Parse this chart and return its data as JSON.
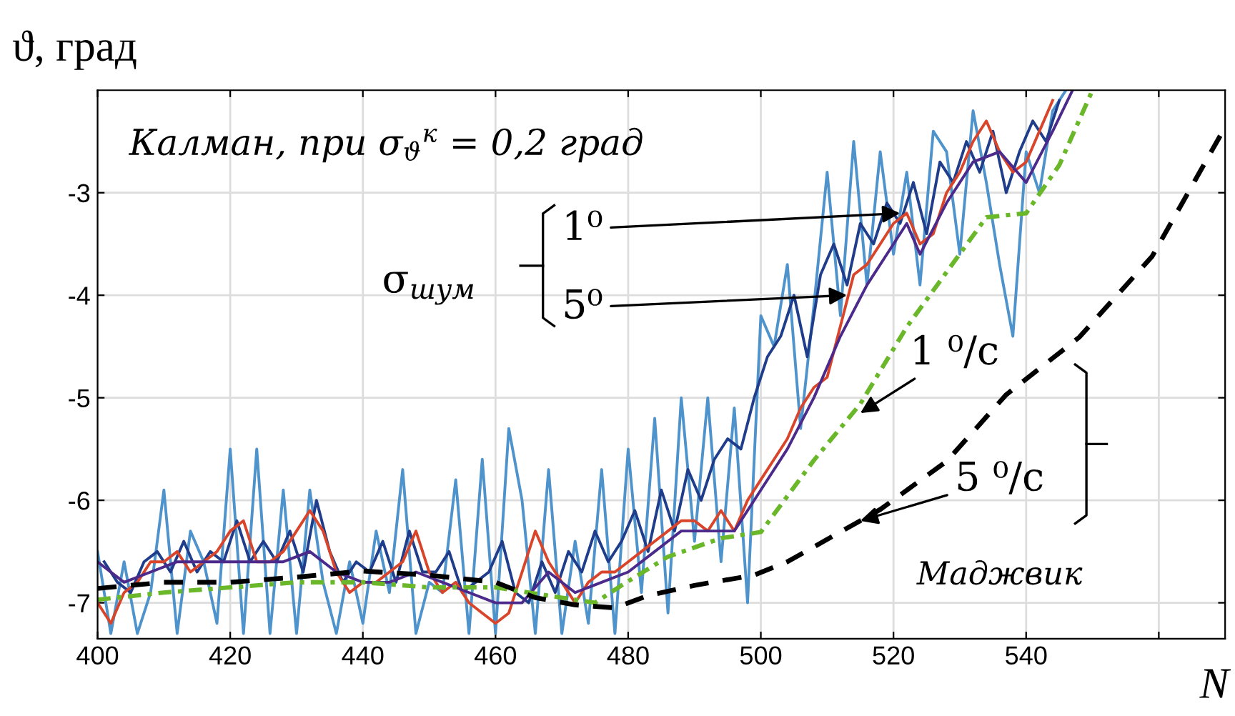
{
  "chart_data": {
    "type": "line",
    "xlabel": "N",
    "ylabel": "ϑ, град",
    "xlim": [
      400,
      570
    ],
    "xticks": [
      400,
      420,
      440,
      460,
      480,
      500,
      520,
      540,
      {
        "value": 560,
        "label": null
      }
    ],
    "ylim": [
      -7.35,
      -2
    ],
    "yticks": [
      -7,
      -6,
      -5,
      -4,
      -3
    ],
    "grid": true,
    "legend": false,
    "marker": "none",
    "series": [
      {
        "color": "#4f93cc",
        "line_style": "solid",
        "x": [
          400,
          402,
          404,
          406,
          408,
          410,
          412,
          414,
          416,
          418,
          420,
          422,
          424,
          426,
          428,
          430,
          432,
          434,
          436,
          438,
          440,
          442,
          444,
          446,
          448,
          450,
          452,
          454,
          456,
          458,
          460,
          462,
          464,
          466,
          468,
          470,
          472,
          474,
          476,
          478,
          480,
          482,
          484,
          486,
          488,
          490,
          492,
          494,
          496,
          498,
          500,
          502,
          504,
          506,
          508,
          510,
          512,
          514,
          516,
          518,
          520,
          522,
          524,
          526,
          528,
          530,
          532,
          534,
          536,
          538,
          540,
          542,
          544,
          546
        ],
        "values": [
          -6.5,
          -7.3,
          -6.6,
          -7.3,
          -6.9,
          -5.9,
          -7.3,
          -6.3,
          -6.6,
          -7.2,
          -5.5,
          -7.3,
          -5.5,
          -7.3,
          -5.9,
          -7.3,
          -5.9,
          -6.8,
          -7.3,
          -6.6,
          -7.2,
          -6.3,
          -6.9,
          -5.7,
          -7.3,
          -6.8,
          -6.9,
          -5.8,
          -7.3,
          -5.6,
          -7.3,
          -5.3,
          -6.0,
          -7.3,
          -5.7,
          -7.3,
          -6.4,
          -7.2,
          -5.7,
          -7.3,
          -5.5,
          -6.9,
          -5.2,
          -7.1,
          -5.0,
          -6.4,
          -5.0,
          -6.6,
          -5.1,
          -7.0,
          -4.2,
          -4.5,
          -3.7,
          -5.3,
          -4.1,
          -2.8,
          -4.2,
          -2.5,
          -3.9,
          -2.6,
          -3.6,
          -2.8,
          -3.9,
          -2.4,
          -2.6,
          -3.6,
          -2.2,
          -2.9,
          -3.7,
          -4.4,
          -2.6,
          -3.0,
          -2.2,
          -2.0
        ]
      },
      {
        "color": "#1f3d8a",
        "line_style": "solid",
        "x": [
          401,
          403,
          405,
          407,
          409,
          411,
          413,
          415,
          417,
          419,
          421,
          423,
          425,
          427,
          429,
          431,
          433,
          435,
          437,
          439,
          441,
          443,
          445,
          447,
          449,
          451,
          453,
          455,
          457,
          459,
          461,
          463,
          465,
          467,
          469,
          471,
          473,
          475,
          477,
          479,
          481,
          483,
          485,
          487,
          489,
          491,
          493,
          495,
          497,
          499,
          501,
          503,
          505,
          507,
          509,
          511,
          513,
          515,
          517,
          519,
          521,
          523,
          525,
          527,
          529,
          531,
          533,
          535,
          537,
          539,
          541,
          543,
          545
        ],
        "values": [
          -6.6,
          -6.8,
          -6.9,
          -6.6,
          -6.5,
          -6.7,
          -6.4,
          -6.7,
          -6.5,
          -6.6,
          -6.2,
          -6.6,
          -6.4,
          -6.6,
          -6.3,
          -6.7,
          -6.0,
          -6.5,
          -6.8,
          -6.6,
          -6.7,
          -6.4,
          -6.8,
          -6.3,
          -6.7,
          -6.7,
          -6.5,
          -6.9,
          -6.8,
          -6.7,
          -6.4,
          -6.9,
          -7.0,
          -6.6,
          -6.9,
          -6.5,
          -6.7,
          -6.3,
          -6.6,
          -6.4,
          -6.1,
          -6.5,
          -5.9,
          -6.3,
          -5.7,
          -6.0,
          -5.6,
          -5.4,
          -5.5,
          -5.0,
          -4.6,
          -4.4,
          -4.0,
          -4.6,
          -3.8,
          -3.5,
          -3.9,
          -3.3,
          -3.5,
          -3.1,
          -3.3,
          -2.9,
          -3.4,
          -2.7,
          -2.9,
          -2.5,
          -2.8,
          -2.4,
          -3.0,
          -2.6,
          -2.3,
          -2.5,
          -2.1
        ]
      },
      {
        "color": "#d9452b",
        "line_style": "solid",
        "x": [
          400,
          402,
          404,
          406,
          408,
          410,
          412,
          414,
          416,
          418,
          420,
          422,
          424,
          426,
          428,
          430,
          432,
          434,
          436,
          438,
          440,
          442,
          444,
          446,
          448,
          450,
          452,
          454,
          456,
          458,
          460,
          462,
          464,
          466,
          468,
          470,
          472,
          474,
          476,
          478,
          480,
          482,
          484,
          486,
          488,
          490,
          492,
          494,
          496,
          498,
          500,
          502,
          504,
          506,
          508,
          510,
          512,
          514,
          516,
          518,
          520,
          522,
          524,
          526,
          528,
          530,
          532,
          534,
          536,
          538,
          540,
          542,
          544
        ],
        "values": [
          -7.0,
          -7.2,
          -6.9,
          -6.8,
          -6.6,
          -6.6,
          -6.5,
          -6.7,
          -6.6,
          -6.5,
          -6.3,
          -6.2,
          -6.6,
          -6.6,
          -6.5,
          -6.3,
          -6.1,
          -6.3,
          -6.7,
          -6.9,
          -6.8,
          -6.8,
          -6.7,
          -6.6,
          -6.3,
          -6.7,
          -6.9,
          -6.8,
          -7.0,
          -7.1,
          -7.2,
          -7.1,
          -6.7,
          -6.3,
          -6.6,
          -6.8,
          -7.0,
          -6.8,
          -6.7,
          -6.7,
          -6.6,
          -6.5,
          -6.4,
          -6.3,
          -6.2,
          -6.2,
          -6.3,
          -6.1,
          -6.3,
          -6.0,
          -5.8,
          -5.6,
          -5.4,
          -5.1,
          -4.9,
          -4.8,
          -4.3,
          -3.8,
          -3.7,
          -3.5,
          -3.3,
          -3.2,
          -3.5,
          -3.4,
          -3.0,
          -2.8,
          -2.5,
          -2.3,
          -2.6,
          -2.8,
          -2.7,
          -2.4,
          -2.1
        ]
      },
      {
        "color": "#4b2a8c",
        "line_style": "solid",
        "x": [
          400,
          404,
          408,
          412,
          416,
          420,
          424,
          428,
          432,
          436,
          440,
          444,
          448,
          452,
          456,
          460,
          464,
          468,
          472,
          476,
          480,
          484,
          488,
          492,
          496,
          500,
          504,
          508,
          512,
          516,
          520,
          522,
          524,
          528,
          532,
          536,
          540,
          544,
          547
        ],
        "values": [
          -6.6,
          -6.8,
          -6.7,
          -6.6,
          -6.6,
          -6.6,
          -6.6,
          -6.6,
          -6.5,
          -6.7,
          -6.8,
          -6.8,
          -6.7,
          -6.8,
          -6.9,
          -7.0,
          -7.0,
          -6.7,
          -6.9,
          -6.8,
          -6.7,
          -6.5,
          -6.3,
          -6.3,
          -6.3,
          -5.9,
          -5.5,
          -5.0,
          -4.4,
          -3.9,
          -3.5,
          -3.3,
          -3.6,
          -3.1,
          -2.7,
          -2.6,
          -2.9,
          -2.4,
          -2.0
        ]
      },
      {
        "color": "#6ab82a",
        "line_style": "dashdot",
        "x": [
          400,
          410,
          420,
          430,
          440,
          450,
          460,
          470,
          475,
          479,
          486,
          494,
          500,
          508,
          515,
          522,
          534,
          540,
          545,
          550
        ],
        "values": [
          -6.97,
          -6.9,
          -6.85,
          -6.8,
          -6.8,
          -6.85,
          -6.85,
          -6.95,
          -7.0,
          -6.83,
          -6.55,
          -6.37,
          -6.31,
          -5.61,
          -5.06,
          -4.31,
          -3.24,
          -3.2,
          -2.73,
          -2.0
        ]
      },
      {
        "color": "#000000",
        "line_style": "dashed",
        "x": [
          400,
          410,
          420,
          430,
          440,
          450,
          460,
          466,
          472,
          478,
          483,
          490,
          499,
          504,
          518,
          528,
          537,
          548,
          559,
          570
        ],
        "values": [
          -6.86,
          -6.8,
          -6.8,
          -6.75,
          -6.69,
          -6.73,
          -6.8,
          -6.95,
          -7.02,
          -7.05,
          -6.93,
          -6.83,
          -6.73,
          -6.6,
          -6.09,
          -5.62,
          -4.97,
          -4.41,
          -3.62,
          -2.36
        ]
      }
    ],
    "annotations": [
      "Калман, при σ$_{ϑ}$$^{к}$ = 0,2 град",
      "σ$_{шум}$",
      {
        "text": "1⁰",
        "x": 521,
        "y": -3.2
      },
      {
        "text": "5⁰",
        "x": 513,
        "y": -4.0
      },
      {
        "text": "1 ⁰/с",
        "x": 515,
        "y": -5.15
      },
      {
        "text": "5 ⁰/с",
        "x": 515,
        "y": -6.2
      },
      "Маджвик"
    ]
  }
}
